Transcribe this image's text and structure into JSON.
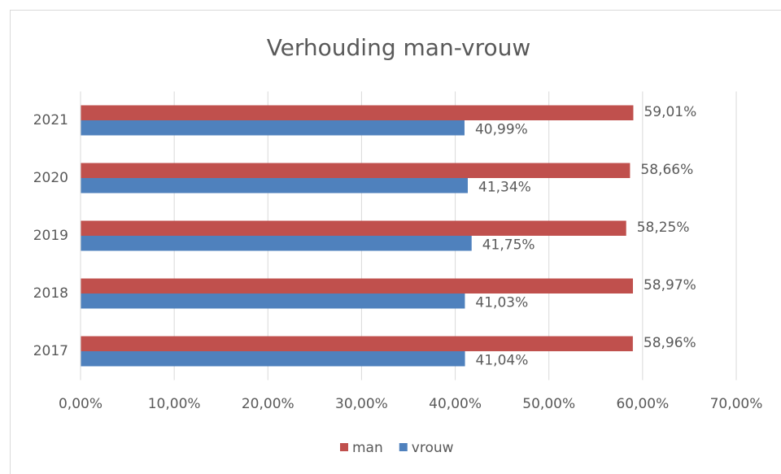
{
  "chart_data": {
    "type": "barh",
    "title": "Verhouding man-vrouw",
    "categories": [
      "2017",
      "2018",
      "2019",
      "2020",
      "2021"
    ],
    "series": [
      {
        "name": "man",
        "color": "#c0504d",
        "values": [
          58.96,
          58.97,
          58.25,
          58.66,
          59.01
        ],
        "value_labels": [
          "58,96%",
          "58,97%",
          "58,25%",
          "58,66%",
          "59,01%"
        ]
      },
      {
        "name": "vrouw",
        "color": "#4f81bd",
        "values": [
          41.04,
          41.03,
          41.75,
          41.34,
          40.99
        ],
        "value_labels": [
          "41,04%",
          "41,03%",
          "41,75%",
          "41,34%",
          "40,99%"
        ]
      }
    ],
    "xlim": [
      0,
      70
    ],
    "xticks": [
      {
        "value": 0,
        "label": "0,00%"
      },
      {
        "value": 10,
        "label": "10,00%"
      },
      {
        "value": 20,
        "label": "20,00%"
      },
      {
        "value": 30,
        "label": "30,00%"
      },
      {
        "value": 40,
        "label": "40,00%"
      },
      {
        "value": 50,
        "label": "50,00%"
      },
      {
        "value": 60,
        "label": "60,00%"
      },
      {
        "value": 70,
        "label": "70,00%"
      }
    ],
    "grid": true,
    "legend": "bottom"
  }
}
